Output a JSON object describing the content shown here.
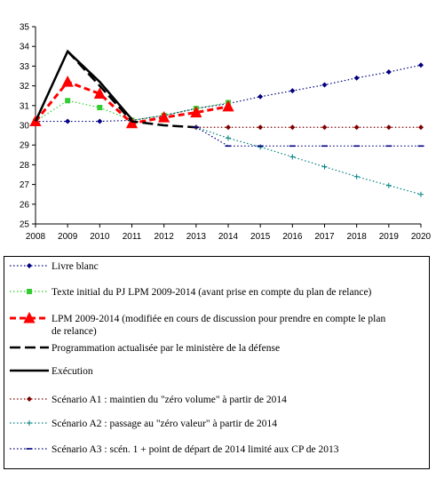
{
  "chart_data": {
    "type": "line",
    "x": [
      2008,
      2009,
      2010,
      2011,
      2012,
      2013,
      2014,
      2015,
      2016,
      2017,
      2018,
      2019,
      2020
    ],
    "ylim": [
      25,
      35
    ],
    "yticks": [
      25,
      26,
      27,
      28,
      29,
      30,
      31,
      32,
      33,
      34,
      35
    ],
    "grid": false,
    "legend_position": "bottom",
    "series": [
      {
        "name": "Livre blanc",
        "color": "#000080",
        "marker": "diamond",
        "style": "dotted",
        "x": [
          2008,
          2009,
          2010,
          2011,
          2012,
          2013,
          2014,
          2015,
          2016,
          2017,
          2018,
          2019,
          2020
        ],
        "values": [
          30.2,
          30.2,
          30.2,
          30.25,
          30.5,
          30.85,
          31.1,
          31.45,
          31.75,
          32.05,
          32.4,
          32.7,
          33.05
        ]
      },
      {
        "name": "Texte initial du PJ LPM 2009-2014 (avant prise en compte du plan de relance)",
        "color": "#33cc33",
        "marker": "square",
        "style": "dotted",
        "x": [
          2008,
          2009,
          2010,
          2011,
          2012,
          2013,
          2014
        ],
        "values": [
          30.2,
          31.25,
          30.9,
          30.25,
          30.5,
          30.85,
          31.15
        ]
      },
      {
        "name": "LPM 2009-2014 (modifiée en cours de discussion pour prendre en compte le plan de relance)",
        "color": "#ff0000",
        "marker": "triangle",
        "style": "dashed",
        "x": [
          2008,
          2009,
          2010,
          2011,
          2012,
          2013,
          2014
        ],
        "values": [
          30.2,
          32.2,
          31.6,
          30.1,
          30.4,
          30.65,
          30.95
        ]
      },
      {
        "name": "Programmation actualisée par le ministère de la défense",
        "color": "#000000",
        "marker": "none",
        "style": "longdash",
        "x": [
          2009,
          2010,
          2011,
          2012,
          2013
        ],
        "values": [
          33.75,
          32.0,
          30.2,
          30.0,
          29.9
        ]
      },
      {
        "name": "Exécution",
        "color": "#000000",
        "marker": "none",
        "style": "solid",
        "x": [
          2008,
          2009,
          2010,
          2011
        ],
        "values": [
          30.2,
          33.75,
          32.2,
          30.3
        ]
      },
      {
        "name": "Scénario A1 : maintien du \"zéro volume\" à partir de 2014",
        "color": "#800000",
        "marker": "diamond",
        "style": "dotted",
        "x": [
          2013,
          2014,
          2015,
          2016,
          2017,
          2018,
          2019,
          2020
        ],
        "values": [
          29.9,
          29.9,
          29.9,
          29.9,
          29.9,
          29.9,
          29.9,
          29.9
        ]
      },
      {
        "name": "Scénario A2 : passage au \"zéro valeur\" à partir de 2014",
        "color": "#008080",
        "marker": "plus",
        "style": "dotted",
        "x": [
          2013,
          2014,
          2015,
          2016,
          2017,
          2018,
          2019,
          2020
        ],
        "values": [
          29.9,
          29.35,
          28.9,
          28.4,
          27.9,
          27.4,
          26.95,
          26.5
        ]
      },
      {
        "name": "Scénario A3 : scén. 1 + point de départ de 2014 limité aux CP de 2013",
        "color": "#000080",
        "marker": "dash",
        "style": "dotted",
        "x": [
          2013,
          2014,
          2015,
          2016,
          2017,
          2018,
          2019,
          2020
        ],
        "values": [
          29.9,
          28.95,
          28.95,
          28.95,
          28.95,
          28.95,
          28.95,
          28.95
        ]
      }
    ]
  }
}
